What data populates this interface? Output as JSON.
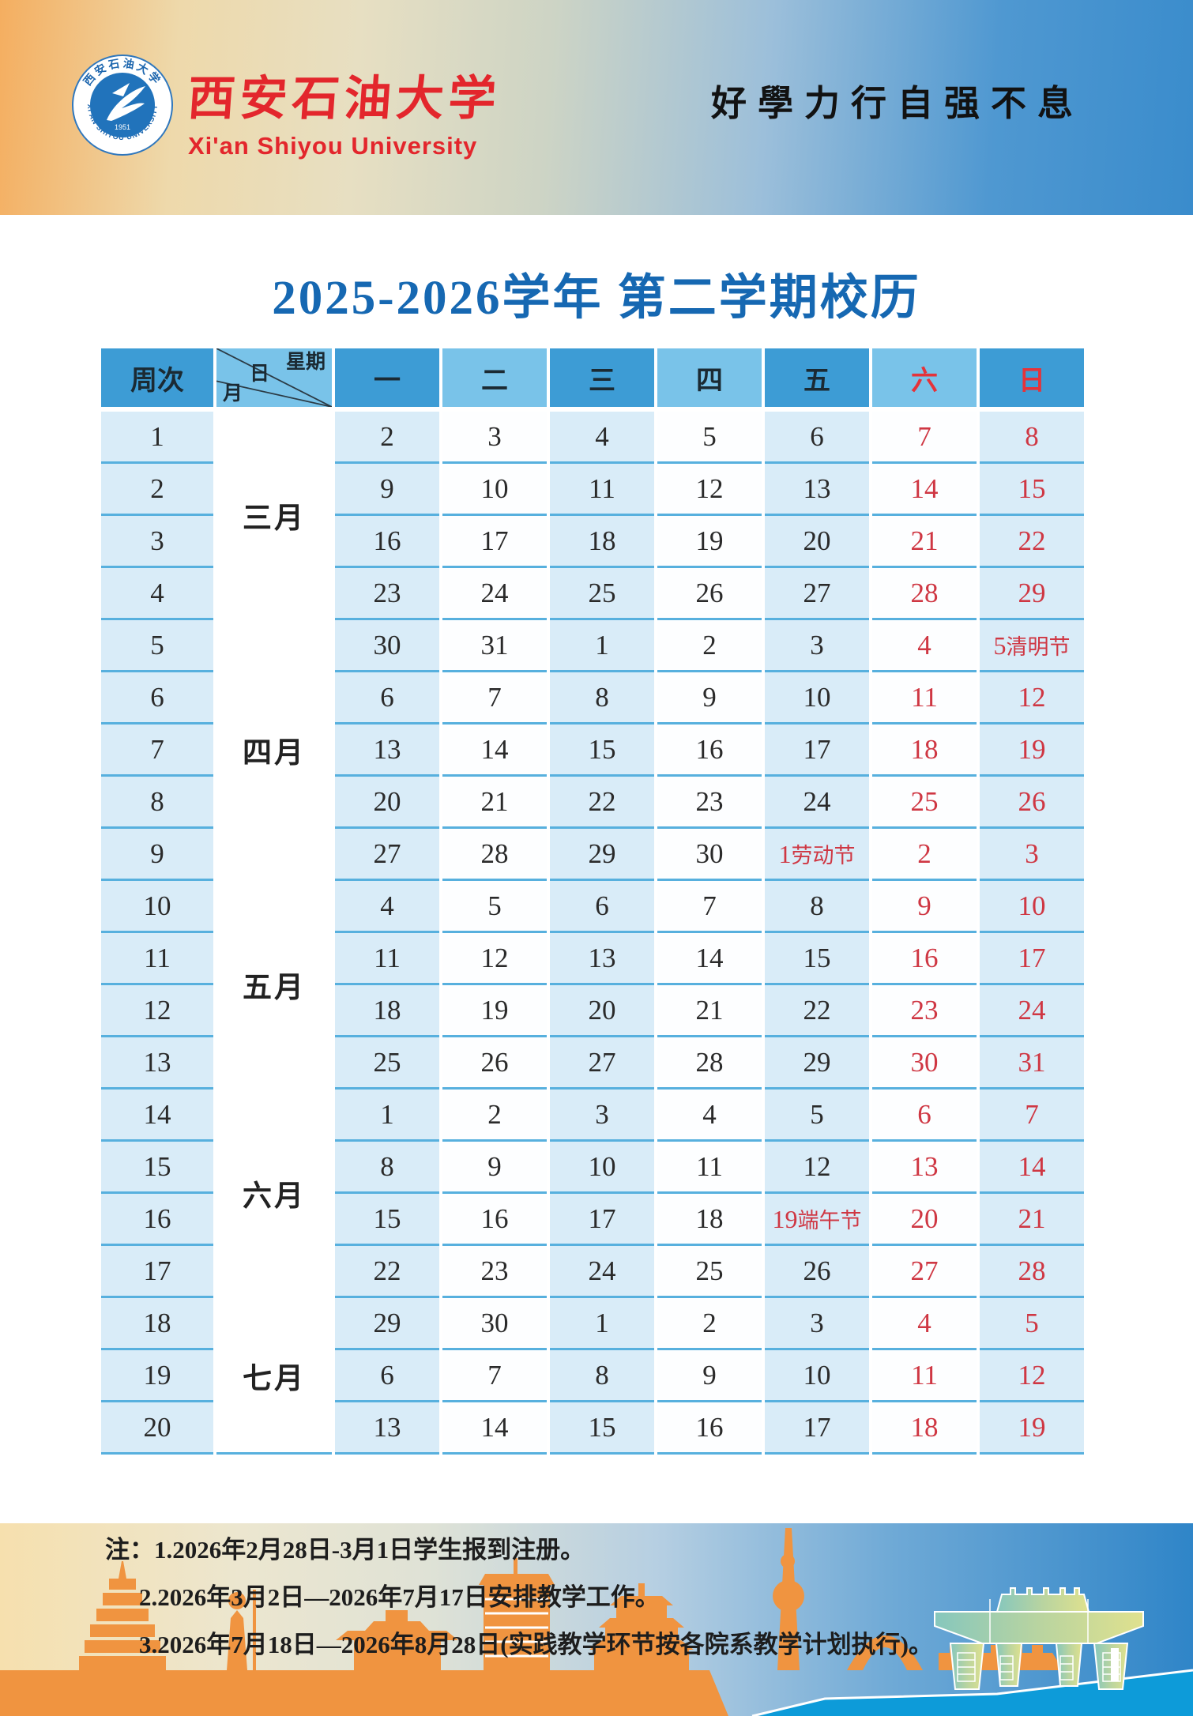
{
  "header": {
    "university_cn": "西安石油大学",
    "university_en": "Xi'an Shiyou University",
    "motto": "好學力行自强不息",
    "logo": {
      "ring_text_cn": "西安石油大学",
      "ring_text_en": "XI'AN SHIYOU UNIVERSITY",
      "year": "1951"
    }
  },
  "title": "2025-2026学年 第二学期校历",
  "calendar": {
    "corner": {
      "week_label": "周次",
      "diag_top": "星期",
      "diag_mid": "日",
      "diag_bottom": "月"
    },
    "day_headers": [
      {
        "label": "一",
        "red": false
      },
      {
        "label": "二",
        "red": false
      },
      {
        "label": "三",
        "red": false
      },
      {
        "label": "四",
        "red": false
      },
      {
        "label": "五",
        "red": false
      },
      {
        "label": "六",
        "red": true
      },
      {
        "label": "日",
        "red": true
      }
    ],
    "months": [
      {
        "label": "三月",
        "weeks": 4
      },
      {
        "label": "四月",
        "weeks": 5
      },
      {
        "label": "五月",
        "weeks": 4
      },
      {
        "label": "六月",
        "weeks": 4
      },
      {
        "label": "七月",
        "weeks": 3
      }
    ],
    "weeks": [
      {
        "week": "1",
        "days": [
          "2",
          "3",
          "4",
          "5",
          "6",
          "7",
          "8"
        ]
      },
      {
        "week": "2",
        "days": [
          "9",
          "10",
          "11",
          "12",
          "13",
          "14",
          "15"
        ]
      },
      {
        "week": "3",
        "days": [
          "16",
          "17",
          "18",
          "19",
          "20",
          "21",
          "22"
        ]
      },
      {
        "week": "4",
        "days": [
          "23",
          "24",
          "25",
          "26",
          "27",
          "28",
          "29"
        ]
      },
      {
        "week": "5",
        "days": [
          "30",
          "31",
          "1",
          "2",
          "3",
          "4",
          {
            "d": "5",
            "h": "清明节"
          }
        ]
      },
      {
        "week": "6",
        "days": [
          "6",
          "7",
          "8",
          "9",
          "10",
          "11",
          "12"
        ]
      },
      {
        "week": "7",
        "days": [
          "13",
          "14",
          "15",
          "16",
          "17",
          "18",
          "19"
        ]
      },
      {
        "week": "8",
        "days": [
          "20",
          "21",
          "22",
          "23",
          "24",
          "25",
          "26"
        ]
      },
      {
        "week": "9",
        "days": [
          "27",
          "28",
          "29",
          "30",
          {
            "d": "1",
            "h": "劳动节"
          },
          "2",
          "3"
        ]
      },
      {
        "week": "10",
        "days": [
          "4",
          "5",
          "6",
          "7",
          "8",
          "9",
          "10"
        ]
      },
      {
        "week": "11",
        "days": [
          "11",
          "12",
          "13",
          "14",
          "15",
          "16",
          "17"
        ]
      },
      {
        "week": "12",
        "days": [
          "18",
          "19",
          "20",
          "21",
          "22",
          "23",
          "24"
        ]
      },
      {
        "week": "13",
        "days": [
          "25",
          "26",
          "27",
          "28",
          "29",
          "30",
          "31"
        ]
      },
      {
        "week": "14",
        "days": [
          "1",
          "2",
          "3",
          "4",
          "5",
          "6",
          "7"
        ]
      },
      {
        "week": "15",
        "days": [
          "8",
          "9",
          "10",
          "11",
          "12",
          "13",
          "14"
        ]
      },
      {
        "week": "16",
        "days": [
          "15",
          "16",
          "17",
          "18",
          {
            "d": "19",
            "h": "端午节"
          },
          "20",
          "21"
        ]
      },
      {
        "week": "17",
        "days": [
          "22",
          "23",
          "24",
          "25",
          "26",
          "27",
          "28"
        ]
      },
      {
        "week": "18",
        "days": [
          "29",
          "30",
          "1",
          "2",
          "3",
          "4",
          "5"
        ]
      },
      {
        "week": "19",
        "days": [
          "6",
          "7",
          "8",
          "9",
          "10",
          "11",
          "12"
        ]
      },
      {
        "week": "20",
        "days": [
          "13",
          "14",
          "15",
          "16",
          "17",
          "18",
          "19"
        ]
      }
    ]
  },
  "notes": {
    "prefix": "注：",
    "items": [
      "1.2026年2月28日-3月1日学生报到注册。",
      "2.2026年3月2日—2026年7月17日安排教学工作。",
      "3.2026年7月18日—2026年8月28日(实践教学环节按各院系教学计划执行)。"
    ]
  },
  "colors": {
    "header_dark": "#3d9cd5",
    "header_light": "#79c3e9",
    "cell_blue": "#d9ecf8",
    "divider": "#57b0de",
    "title_blue": "#1668b2",
    "red_head": "#e5333a",
    "red_date": "#cf3743",
    "skyline_orange": "#f09440",
    "footer_blue": "#0d9bd9"
  }
}
